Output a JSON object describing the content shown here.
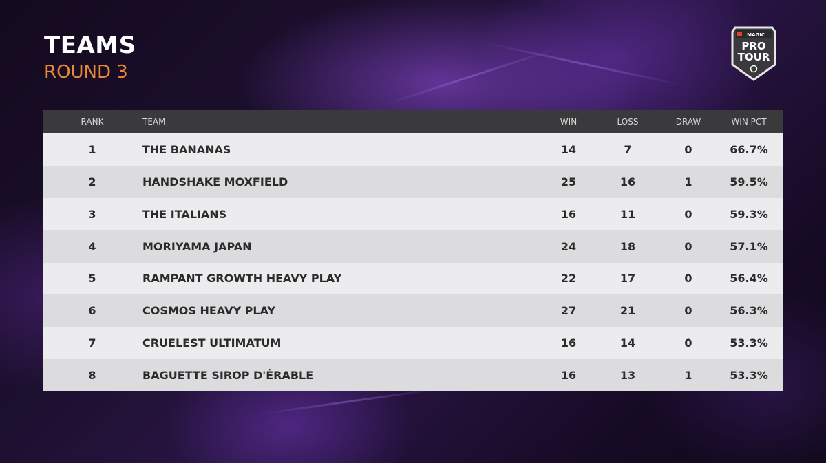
{
  "heading": {
    "title": "TEAMS",
    "subtitle": "ROUND 3"
  },
  "logo": {
    "brand": "MAGIC",
    "line1": "PRO",
    "line2": "TOUR"
  },
  "table": {
    "columns": {
      "rank": "RANK",
      "team": "TEAM",
      "win": "WIN",
      "loss": "LOSS",
      "draw": "DRAW",
      "win_pct": "WIN PCT"
    },
    "rows": [
      {
        "rank": "1",
        "team": "THE BANANAS",
        "win": "14",
        "loss": "7",
        "draw": "0",
        "win_pct": "66.7%"
      },
      {
        "rank": "2",
        "team": "HANDSHAKE MOXFIELD",
        "win": "25",
        "loss": "16",
        "draw": "1",
        "win_pct": "59.5%"
      },
      {
        "rank": "3",
        "team": "THE ITALIANS",
        "win": "16",
        "loss": "11",
        "draw": "0",
        "win_pct": "59.3%"
      },
      {
        "rank": "4",
        "team": "MORIYAMA JAPAN",
        "win": "24",
        "loss": "18",
        "draw": "0",
        "win_pct": "57.1%"
      },
      {
        "rank": "5",
        "team": "RAMPANT GROWTH HEAVY PLAY",
        "win": "22",
        "loss": "17",
        "draw": "0",
        "win_pct": "56.4%"
      },
      {
        "rank": "6",
        "team": "COSMOS HEAVY PLAY",
        "win": "27",
        "loss": "21",
        "draw": "0",
        "win_pct": "56.3%"
      },
      {
        "rank": "7",
        "team": "CRUELEST ULTIMATUM",
        "win": "16",
        "loss": "14",
        "draw": "0",
        "win_pct": "53.3%"
      },
      {
        "rank": "8",
        "team": "BAGUETTE SIROP D'ÉRABLE",
        "win": "16",
        "loss": "13",
        "draw": "1",
        "win_pct": "53.3%"
      }
    ]
  },
  "colors": {
    "title": "#ffffff",
    "subtitle_accent": "#e8893a",
    "header_bg": "#3a3a3c",
    "row_light": "#ececee",
    "row_dark": "#dcdcde",
    "background": "#1d1030"
  }
}
